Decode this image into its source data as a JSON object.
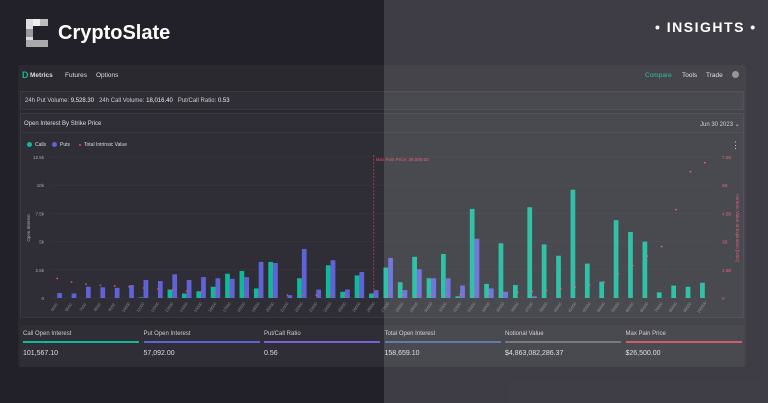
{
  "brand": {
    "name": "CryptoSlate",
    "tag": "• INSIGHTS •"
  },
  "nav": {
    "logo": "Metrics",
    "items": [
      "Futures",
      "Options"
    ],
    "right": [
      "Compare",
      "Tools",
      "Trade"
    ],
    "settings_icon": "gear-icon"
  },
  "summary": {
    "put_volume_label": "24h Put Volume:",
    "put_volume": "9,528.30",
    "call_volume_label": "24h Call Volume:",
    "call_volume": "18,016.40",
    "ratio_label": "Put/Call Ratio:",
    "ratio": "0.53"
  },
  "chart_panel": {
    "title": "Open Interest By Strike Price",
    "expiry": "Jun 30 2023",
    "menu_icon": "kebab-icon"
  },
  "colors": {
    "calls": "#12b89a",
    "puts": "#5f63d6",
    "intrinsic": "#e0505e",
    "accent": "#12b89a"
  },
  "chart_data": {
    "type": "bar",
    "legend": [
      "Calls",
      "Puts",
      "Total Intrinsic Value"
    ],
    "ylabel": "Open Interest",
    "y2label": "Intrinsic Value at Expiration [USD]",
    "ylim": [
      0,
      12500
    ],
    "y_ticks": [
      "0",
      "2.5k",
      "5k",
      "7.5k",
      "10k",
      "12.5k"
    ],
    "y2lim": [
      0,
      7.5
    ],
    "y2_ticks": [
      "0",
      "1.5B",
      "3B",
      "4.5B",
      "6B",
      "7.5B"
    ],
    "annotation": "Max Pain Price: 26,500.00",
    "max_pain_strike": "26500",
    "categories": [
      "5000",
      "6000",
      "7000",
      "8000",
      "9000",
      "10000",
      "11000",
      "12000",
      "13000",
      "14000",
      "15000",
      "16000",
      "17000",
      "18000",
      "19000",
      "20000",
      "21000",
      "22000",
      "23000",
      "24000",
      "25000",
      "26000",
      "26500",
      "27000",
      "28000",
      "29000",
      "30000",
      "31000",
      "32000",
      "33000",
      "34000",
      "35000",
      "36000",
      "37000",
      "38000",
      "40000",
      "42000",
      "45000",
      "50000",
      "55000",
      "60000",
      "65000",
      "70000",
      "80000",
      "90000",
      "100000"
    ],
    "series": [
      {
        "name": "Calls",
        "values": [
          0,
          0,
          0,
          0,
          0,
          0,
          50,
          0,
          750,
          400,
          600,
          1000,
          2150,
          2400,
          850,
          3200,
          0,
          1750,
          0,
          2900,
          550,
          2000,
          400,
          2700,
          1400,
          3650,
          1750,
          3900,
          150,
          7900,
          1250,
          4850,
          1150,
          8050,
          4750,
          3750,
          9600,
          3050,
          1450,
          6900,
          5850,
          5000,
          500,
          1100,
          1000,
          1350
        ]
      },
      {
        "name": "Puts",
        "values": [
          440,
          400,
          1000,
          950,
          900,
          1150,
          1600,
          1500,
          2100,
          1600,
          1850,
          1750,
          1700,
          1850,
          3200,
          3100,
          250,
          4350,
          750,
          3350,
          750,
          2300,
          700,
          3550,
          700,
          2550,
          1750,
          1750,
          1100,
          5250,
          850,
          550,
          0,
          150,
          0,
          0,
          0,
          0,
          0,
          0,
          0,
          0,
          0,
          0,
          0,
          0
        ]
      },
      {
        "name": "Total Intrinsic Value",
        "unit": "B USD",
        "values": [
          1.04,
          0.85,
          0.74,
          0.67,
          0.64,
          0.6,
          0.53,
          0.48,
          0.42,
          0.37,
          0.32,
          0.28,
          0.25,
          0.21,
          0.18,
          0.16,
          0.16,
          0.15,
          0.15,
          0.14,
          0.14,
          0.14,
          0.14,
          0.14,
          0.15,
          0.15,
          0.16,
          0.17,
          0.18,
          0.19,
          0.22,
          0.27,
          0.3,
          0.35,
          0.4,
          0.48,
          0.58,
          0.69,
          0.85,
          1.29,
          1.73,
          2.23,
          2.74,
          4.7,
          6.72,
          7.2
        ]
      }
    ]
  },
  "stats": [
    {
      "label": "Call Open Interest",
      "value": "101,567.10",
      "color": "#12b89a"
    },
    {
      "label": "Put Open Interest",
      "value": "57,092.00",
      "color": "#5f63d6"
    },
    {
      "label": "Put/Call Ratio",
      "value": "0.56",
      "color": "#7a5fd6"
    },
    {
      "label": "Total Open Interest",
      "value": "158,659.10",
      "color": "#4a6a9a"
    },
    {
      "label": "Notional Value",
      "value": "$4,863,082,286.37",
      "color": "#666670"
    },
    {
      "label": "Max Pain Price",
      "value": "$26,500.00",
      "color": "#c44a58"
    }
  ]
}
